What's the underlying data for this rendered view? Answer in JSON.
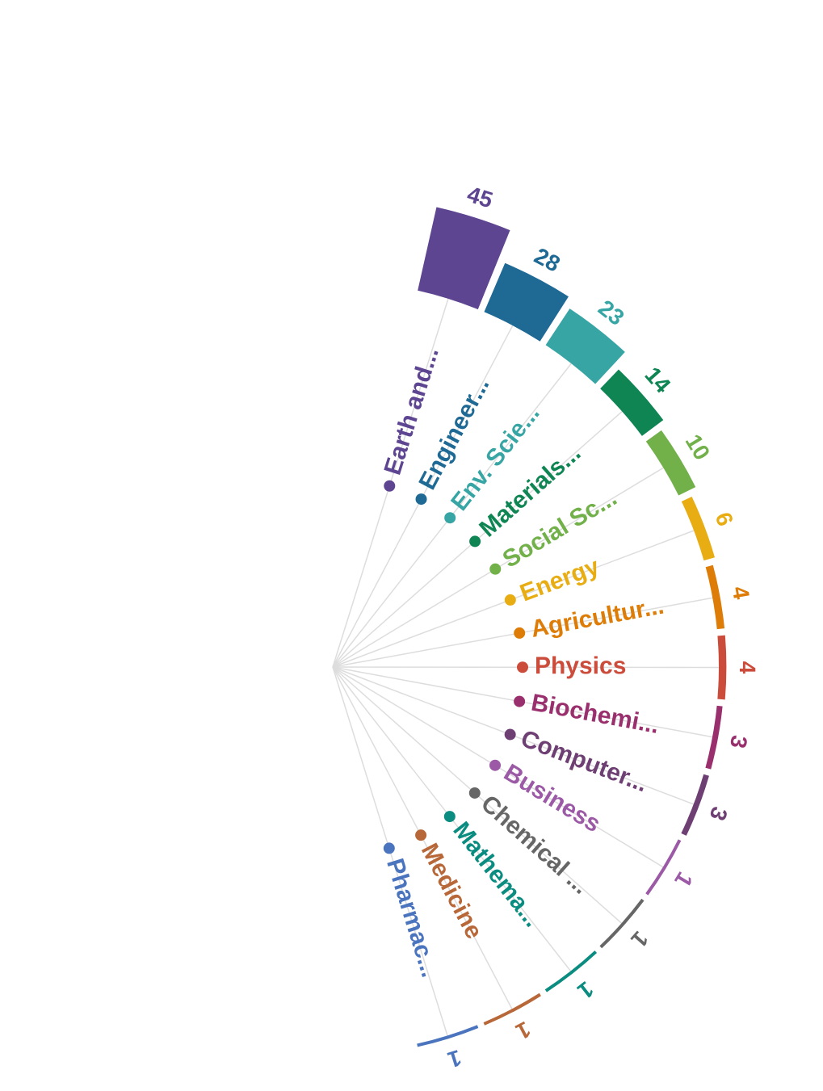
{
  "chart_data": {
    "type": "bar",
    "layout": "radial",
    "title": "",
    "categories": [
      "Earth and...",
      "Engineer...",
      "Env. Scie...",
      "Materials...",
      "Social Sc...",
      "Energy",
      "Agricultur...",
      "Physics",
      "Biochemi...",
      "Computer...",
      "Business",
      "Chemical ...",
      "Mathema...",
      "Medicine",
      "Pharmac..."
    ],
    "values": [
      45,
      28,
      23,
      14,
      10,
      6,
      4,
      4,
      3,
      3,
      1,
      1,
      1,
      1,
      1
    ],
    "colors": [
      "#5e4591",
      "#1f6995",
      "#38a5a5",
      "#0e8553",
      "#72b04a",
      "#e8ad12",
      "#dd7c06",
      "#cc4c3c",
      "#9a2f6e",
      "#6e3f73",
      "#9b59a6",
      "#666666",
      "#0b8c80",
      "#b86838",
      "#4a74be"
    ]
  }
}
